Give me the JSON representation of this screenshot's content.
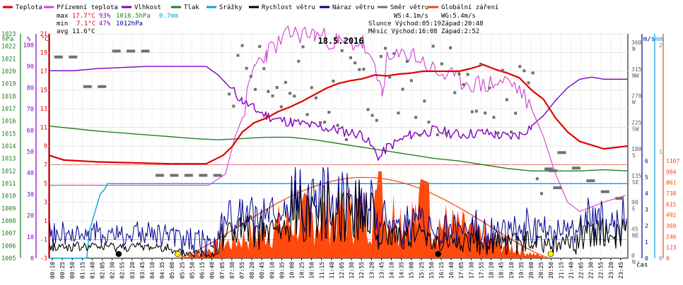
{
  "legend": [
    {
      "label": "Teplota",
      "color": "#e00000"
    },
    {
      "label": "Přízemní teplota",
      "color": "#d040d0"
    },
    {
      "label": "Vlhkost",
      "color": "#8000c0"
    },
    {
      "label": "Tlak",
      "color": "#208020"
    },
    {
      "label": "Srážky",
      "color": "#00a8e0"
    },
    {
      "label": "Rychlost větru",
      "color": "#000000"
    },
    {
      "label": "Náraz větru",
      "color": "#000090"
    },
    {
      "label": "Směr větru",
      "color": "#707070"
    },
    {
      "label": "Globální záření",
      "color": "#ff4000"
    }
  ],
  "stats": {
    "max_label": "max",
    "max_temp": "17.7°C",
    "max_hum": "93%",
    "max_press": "1016.5hPa",
    "max_rain": "0.7mm",
    "min_label": "min",
    "min_temp": "7.1°C",
    "min_hum": "47%",
    "min_press": "1012hPa",
    "avg_label": "avg",
    "avg_temp": "11.6°C"
  },
  "wind_info": {
    "ws": "WS:4.1m/s",
    "wg": "WG:5.4m/s",
    "sun": "Slunce Východ:05:19",
    "sun_set": "Západ:20:48",
    "moon": "Měsíc  Východ:16:08",
    "moon_set": "Západ:2:52"
  },
  "date_title": "18.5.2016",
  "units": {
    "hpa": "hPa",
    "pct": "%",
    "degc": "°C",
    "ms": "m/s",
    "mm": "mm",
    "time": "čas"
  },
  "colors": {
    "temp": "#e00000",
    "ground": "#d040d0",
    "hum": "#8000c0",
    "press": "#208020",
    "rain": "#00a8e0",
    "wind": "#000000",
    "gust": "#000090",
    "dir": "#707070",
    "solar": "#ff4000"
  },
  "chart_data": {
    "type": "line",
    "x_ticks": [
      "00:10",
      "00:25",
      "00:50",
      "01:15",
      "01:40",
      "02:05",
      "02:30",
      "02:55",
      "03:20",
      "03:45",
      "04:10",
      "04:35",
      "05:00",
      "05:25",
      "05:50",
      "06:15",
      "06:40",
      "07:05",
      "07:30",
      "07:55",
      "08:20",
      "08:45",
      "09:10",
      "09:35",
      "10:00",
      "10:25",
      "10:50",
      "11:15",
      "11:40",
      "12:05",
      "12:30",
      "12:55",
      "13:20",
      "13:45",
      "14:10",
      "14:35",
      "15:00",
      "15:25",
      "15:50",
      "16:15",
      "16:40",
      "17:05",
      "17:30",
      "17:55",
      "18:20",
      "18:45",
      "19:10",
      "19:35",
      "20:00",
      "20:25",
      "20:50",
      "21:15",
      "21:40",
      "22:05",
      "22:30",
      "22:55",
      "23:20",
      "23:45"
    ],
    "axes": {
      "pressure": {
        "label": "hPa",
        "ticks": [
          1005,
          1006,
          1007,
          1008,
          1009,
          1010,
          1011,
          1012,
          1013,
          1014,
          1015,
          1016,
          1017,
          1018,
          1019,
          1020,
          1021,
          1022,
          1023
        ]
      },
      "humidity": {
        "label": "%",
        "ticks": [
          0,
          10,
          20,
          30,
          40,
          50,
          60,
          70,
          80,
          90,
          100
        ]
      },
      "temperature": {
        "label": "°C",
        "ticks": [
          -3,
          -1,
          1,
          3,
          5,
          7,
          9,
          11,
          13,
          15,
          17,
          19,
          21
        ]
      },
      "direction": {
        "ticks": [
          "0",
          "45",
          "90",
          "135",
          "180",
          "225",
          "270",
          "315",
          "360"
        ],
        "compass": [
          "N",
          "NE",
          "E",
          "SE",
          "S",
          "SW",
          "W",
          "NW",
          "N"
        ]
      },
      "wind_speed": {
        "label": "m/s",
        "ticks": [
          "0",
          "1",
          "2",
          "3",
          "4",
          "5",
          "6"
        ]
      },
      "rain": {
        "label": "mm",
        "ticks": [
          "0",
          "1",
          "2"
        ]
      },
      "solar": {
        "ticks": [
          "0",
          "123",
          "246",
          "369",
          "492",
          "615",
          "738",
          "861",
          "984",
          "1107"
        ]
      }
    },
    "series": {
      "temperature": [
        [
          0,
          8.0
        ],
        [
          0.6,
          7.5
        ],
        [
          2,
          7.3
        ],
        [
          5,
          7.1
        ],
        [
          6.5,
          7.1
        ],
        [
          7.2,
          8.0
        ],
        [
          7.6,
          9.0
        ],
        [
          8.0,
          10.5
        ],
        [
          8.5,
          11.5
        ],
        [
          9.0,
          12.0
        ],
        [
          9.5,
          12.7
        ],
        [
          10.0,
          13.2
        ],
        [
          10.5,
          13.8
        ],
        [
          11.0,
          14.5
        ],
        [
          11.5,
          15.2
        ],
        [
          12.0,
          15.7
        ],
        [
          12.5,
          16.0
        ],
        [
          13.0,
          16.2
        ],
        [
          13.5,
          16.6
        ],
        [
          14.0,
          16.5
        ],
        [
          14.5,
          16.7
        ],
        [
          15.0,
          16.8
        ],
        [
          15.5,
          17.0
        ],
        [
          16.0,
          17.0
        ],
        [
          17.0,
          17.0
        ],
        [
          17.5,
          17.3
        ],
        [
          18.0,
          17.7
        ],
        [
          18.5,
          17.2
        ],
        [
          19.0,
          16.8
        ],
        [
          19.5,
          16.3
        ],
        [
          20.0,
          15.0
        ],
        [
          20.5,
          14.0
        ],
        [
          21.0,
          12.0
        ],
        [
          21.5,
          10.5
        ],
        [
          22.0,
          9.5
        ],
        [
          23.0,
          8.7
        ],
        [
          24.0,
          9.0
        ]
      ],
      "humidity": [
        [
          0,
          88
        ],
        [
          1,
          88
        ],
        [
          2,
          89
        ],
        [
          4,
          90
        ],
        [
          6.5,
          90
        ],
        [
          7.0,
          86
        ],
        [
          7.5,
          80
        ],
        [
          8.0,
          74
        ],
        [
          8.5,
          70
        ],
        [
          9.0,
          67
        ],
        [
          9.5,
          65
        ],
        [
          10,
          64
        ],
        [
          11,
          62
        ],
        [
          12,
          60
        ],
        [
          13,
          58
        ],
        [
          13.7,
          47
        ],
        [
          14,
          52
        ],
        [
          15,
          58
        ],
        [
          16,
          60
        ],
        [
          17,
          58
        ],
        [
          18,
          59
        ],
        [
          18.5,
          58
        ],
        [
          19,
          57
        ],
        [
          19.5,
          58
        ],
        [
          20,
          62
        ],
        [
          20.5,
          67
        ],
        [
          21,
          74
        ],
        [
          21.5,
          80
        ],
        [
          22,
          84
        ],
        [
          22.5,
          85
        ],
        [
          23,
          84
        ],
        [
          24,
          84
        ]
      ],
      "ground_temperature": [
        [
          0,
          4.8
        ],
        [
          6.6,
          4.8
        ],
        [
          7.3,
          6
        ],
        [
          7.7,
          10
        ],
        [
          8.0,
          12
        ],
        [
          8.5,
          17.5
        ],
        [
          9.0,
          19
        ],
        [
          9.5,
          20
        ],
        [
          10,
          21
        ],
        [
          11,
          21
        ],
        [
          12,
          20
        ],
        [
          13,
          20
        ],
        [
          13.8,
          15
        ],
        [
          14,
          18
        ],
        [
          15,
          19
        ],
        [
          16,
          17
        ],
        [
          17,
          16
        ],
        [
          18,
          15.5
        ],
        [
          19,
          16
        ],
        [
          19.5,
          15
        ],
        [
          20,
          13
        ],
        [
          20.5,
          10
        ],
        [
          21,
          6
        ],
        [
          21.5,
          3
        ],
        [
          22,
          2
        ],
        [
          23,
          3
        ],
        [
          24,
          3.8
        ]
      ],
      "pressure": [
        [
          0,
          1015.6
        ],
        [
          2,
          1015.2
        ],
        [
          4,
          1014.9
        ],
        [
          6,
          1014.6
        ],
        [
          7,
          1014.5
        ],
        [
          8,
          1014.6
        ],
        [
          9,
          1014.7
        ],
        [
          10,
          1014.7
        ],
        [
          11,
          1014.5
        ],
        [
          12,
          1014.2
        ],
        [
          13,
          1013.9
        ],
        [
          14,
          1013.6
        ],
        [
          15,
          1013.3
        ],
        [
          16,
          1013.0
        ],
        [
          17,
          1012.8
        ],
        [
          18,
          1012.5
        ],
        [
          19,
          1012.2
        ],
        [
          20,
          1012.0
        ],
        [
          21,
          1012.0
        ],
        [
          22,
          1012.0
        ],
        [
          23,
          1012.1
        ],
        [
          24,
          1012.0
        ]
      ],
      "rain_cumulative": [
        [
          0,
          0
        ],
        [
          1.55,
          0
        ],
        [
          1.65,
          0.25
        ],
        [
          2.1,
          0.6
        ],
        [
          2.3,
          0.65
        ],
        [
          2.4,
          0.7
        ],
        [
          24,
          0.7
        ]
      ],
      "solar_radiation_max": 1107
    }
  }
}
